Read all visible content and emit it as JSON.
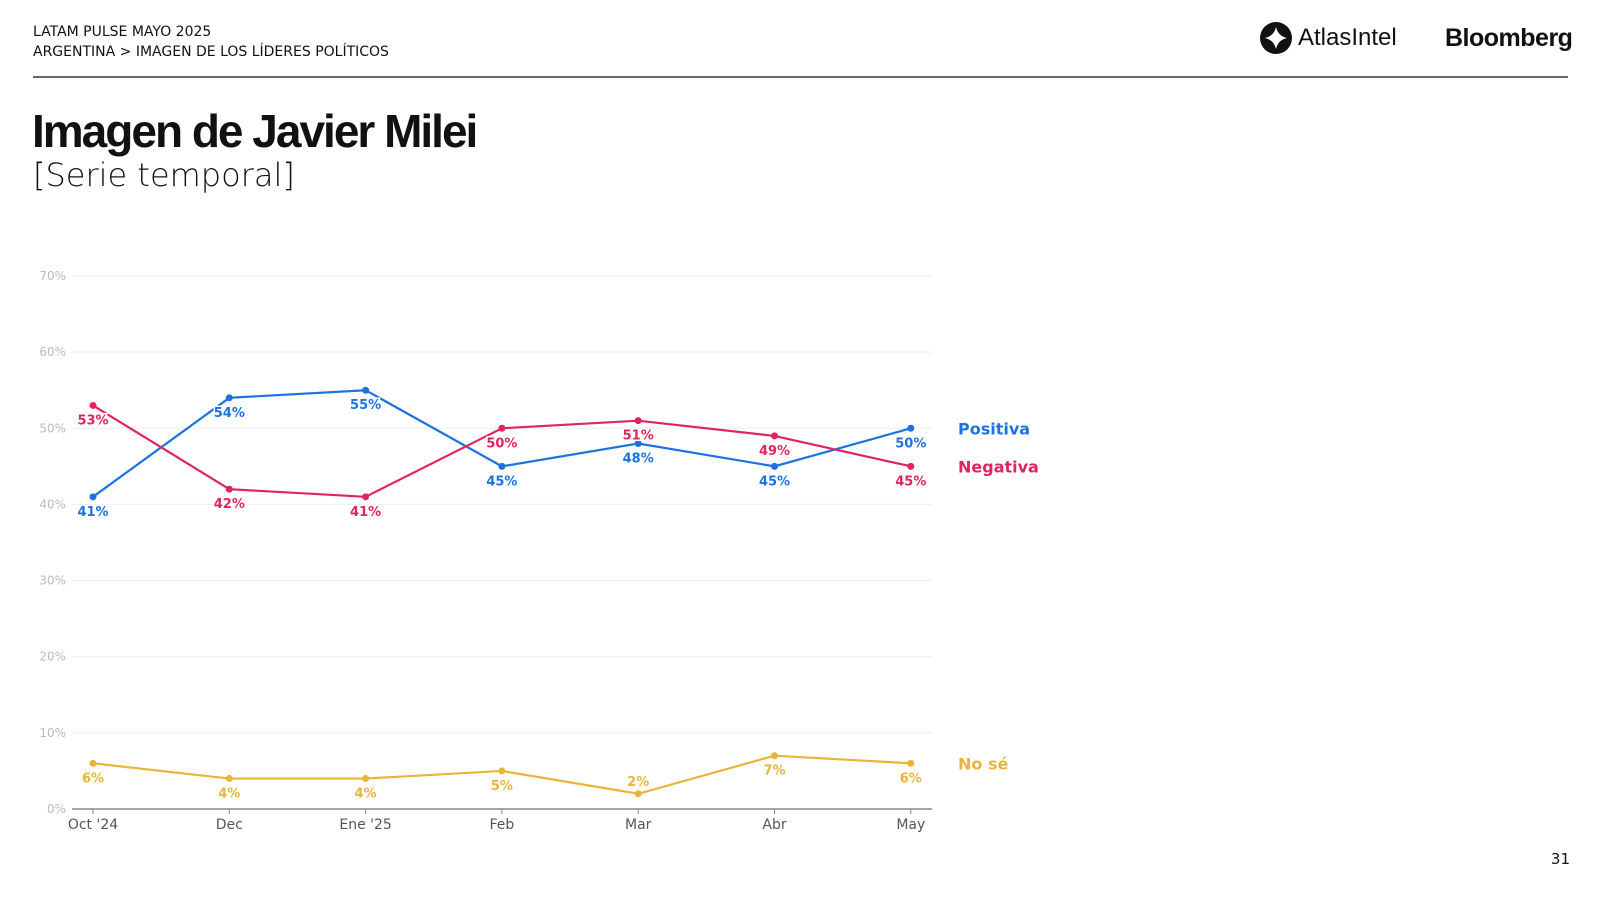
{
  "header": {
    "line1": "LATAM PULSE MAYO 2025",
    "line2": "ARGENTINA > IMAGEN DE LOS LÍDERES POLÍTICOS"
  },
  "logos": {
    "atlas": "AtlasIntel",
    "bloomberg": "Bloomberg"
  },
  "title": "Imagen de Javier Milei",
  "subtitle": "[Serie temporal]",
  "page_number": "31",
  "chart_data": {
    "type": "line",
    "categories": [
      "Oct '24",
      "Dec",
      "Ene '25",
      "Feb",
      "Mar",
      "Abr",
      "May"
    ],
    "ylim": [
      0,
      70
    ],
    "yticks": [
      "0%",
      "10%",
      "20%",
      "30%",
      "40%",
      "50%",
      "60%",
      "70%"
    ],
    "grid": true,
    "legend": "right, inline labels at line ends",
    "series": [
      {
        "name": "Positiva",
        "color": "#1a73e0",
        "values": [
          41,
          54,
          55,
          45,
          48,
          45,
          50
        ]
      },
      {
        "name": "Negativa",
        "color": "#e0245e",
        "values": [
          53,
          42,
          41,
          50,
          51,
          49,
          45
        ]
      },
      {
        "name": "No sé",
        "color": "#e8b53a",
        "values": [
          6,
          4,
          4,
          5,
          2,
          7,
          6
        ]
      }
    ]
  }
}
